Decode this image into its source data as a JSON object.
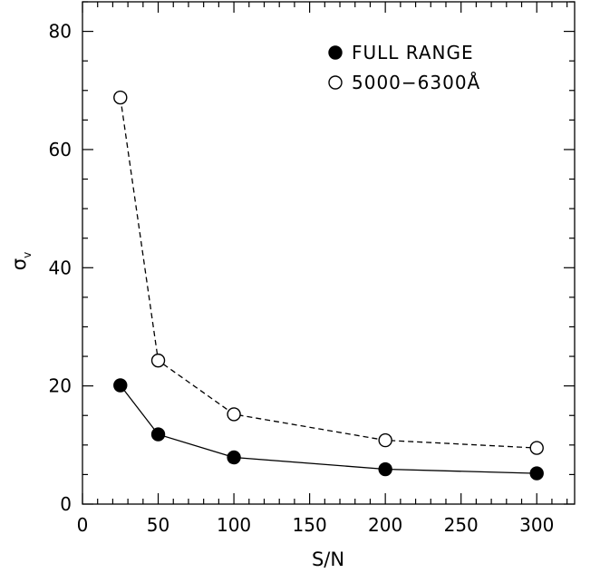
{
  "chart_data": {
    "type": "line",
    "xlabel": "S/N",
    "ylabel": "σ",
    "ylabel_sub": "v",
    "xlim": [
      0,
      325
    ],
    "ylim": [
      0,
      85
    ],
    "x_ticks": [
      0,
      50,
      100,
      150,
      200,
      250,
      300
    ],
    "y_ticks": [
      0,
      20,
      40,
      60,
      80
    ],
    "legend_position": "top-right",
    "series": [
      {
        "name": "FULL RANGE",
        "marker": "filled-circle",
        "line": "solid",
        "color": "#000000",
        "x": [
          25,
          50,
          100,
          200,
          300
        ],
        "y": [
          20.1,
          11.8,
          7.9,
          5.9,
          5.2
        ]
      },
      {
        "name": "5000−6300Å",
        "marker": "open-circle",
        "line": "dashed",
        "color": "#000000",
        "x": [
          25,
          50,
          100,
          200,
          300
        ],
        "y": [
          68.8,
          24.3,
          15.2,
          10.8,
          9.5
        ]
      }
    ]
  }
}
